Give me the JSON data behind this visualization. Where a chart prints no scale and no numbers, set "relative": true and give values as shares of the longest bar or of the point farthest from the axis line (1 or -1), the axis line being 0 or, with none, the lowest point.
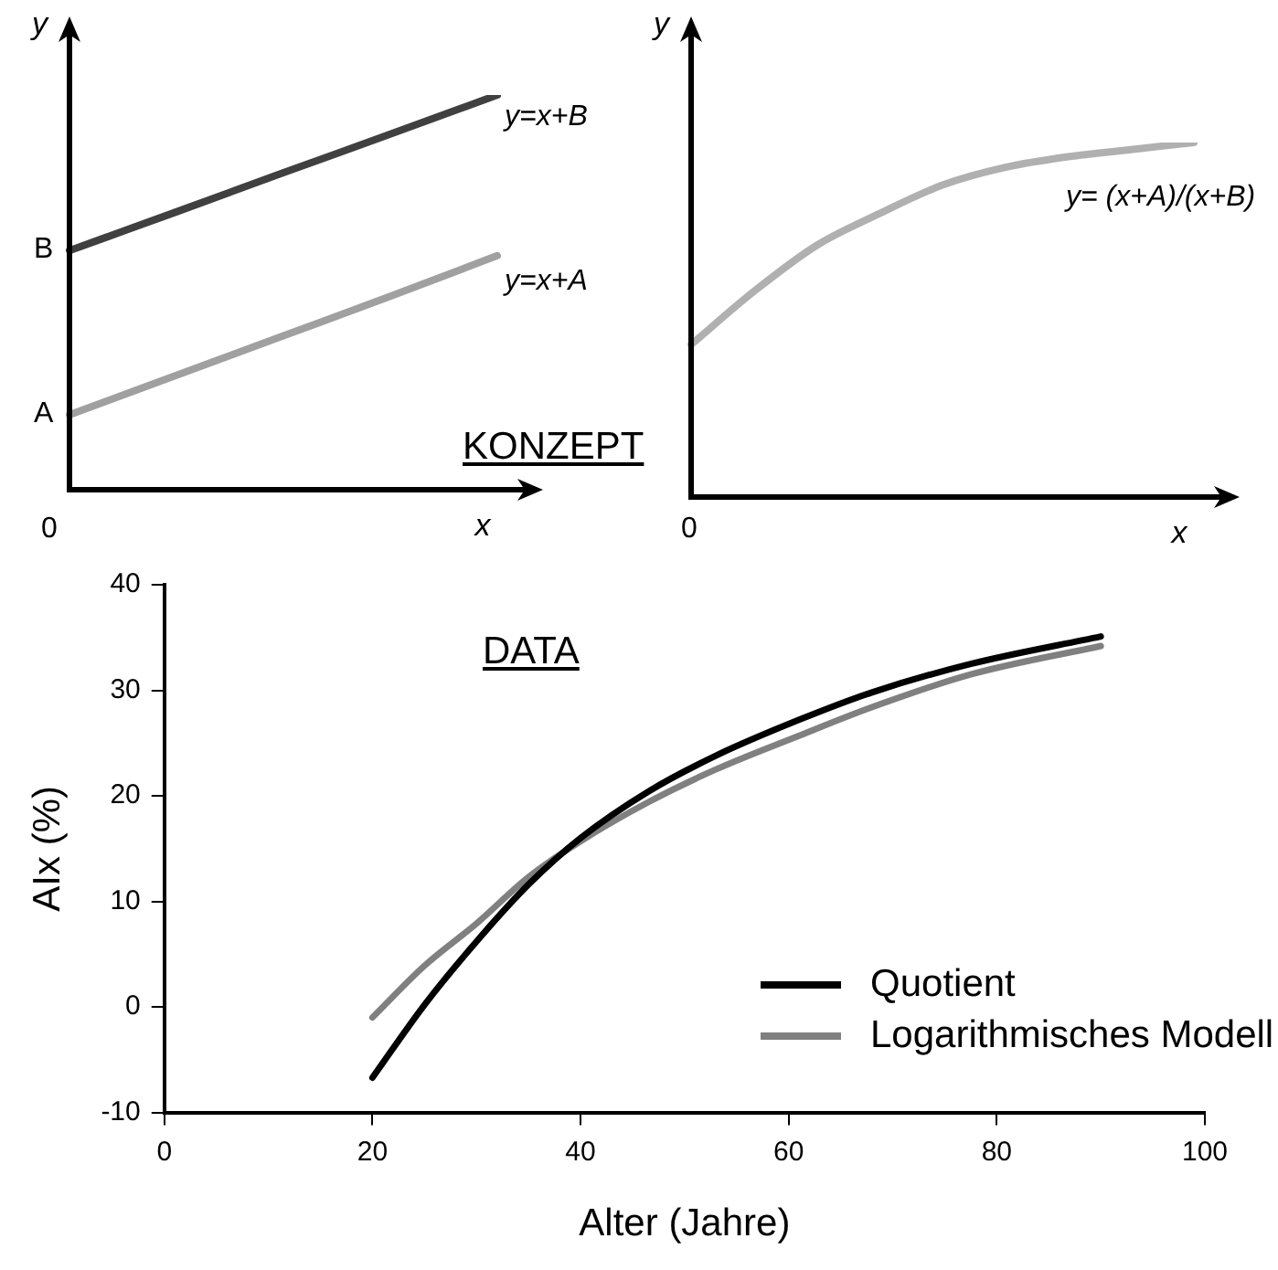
{
  "chart_data": [
    {
      "type": "line",
      "relative": true,
      "xlabel": "x",
      "ylabel": "y",
      "marker": "none",
      "categories": [
        null,
        null,
        null,
        null,
        null
      ],
      "series": [
        {
          "name": "y=x+B",
          "color": "#404040",
          "values": [
            0.606,
            0.704,
            0.803,
            0.901,
            1
          ]
        },
        {
          "name": "y=x+A",
          "color": "#a0a0a0",
          "values": [
            0.19,
            0.29,
            0.39,
            0.49,
            0.593
          ]
        }
      ],
      "annotations": [
        "B",
        "A",
        "0",
        "KONZEPT"
      ]
    },
    {
      "type": "line",
      "relative": true,
      "xlabel": "x",
      "ylabel": "y",
      "marker": "none",
      "categories": [
        null,
        null,
        null,
        null,
        null,
        null,
        null,
        null,
        null
      ],
      "series": [
        {
          "name": "y= (x+A)/(x+B)",
          "color": "#b0b0b0",
          "values": [
            0.43,
            0.58,
            0.71,
            0.8,
            0.88,
            0.93,
            0.96,
            0.98,
            1
          ]
        }
      ],
      "annotations": [
        "0"
      ]
    },
    {
      "type": "line",
      "xlabel": "Alter (Jahre)",
      "ylabel": "AIx (%)",
      "marker": "none",
      "grid": false,
      "legend": "bottom right",
      "xlim": [
        0,
        100
      ],
      "xticks": [
        0,
        20,
        40,
        60,
        80,
        100
      ],
      "ylim": [
        -10,
        40
      ],
      "yticks": [
        -10,
        0,
        10,
        20,
        30,
        40
      ],
      "x": [
        20,
        25,
        30,
        35,
        40,
        46.5,
        53,
        61,
        68,
        77.5,
        90
      ],
      "series": [
        {
          "name": "Quotient",
          "color": "#000000",
          "values": [
            -6.7,
            0.2,
            6.2,
            11.6,
            16.0,
            20.4,
            23.8,
            27.2,
            29.8,
            32.5,
            35.1
          ]
        },
        {
          "name": "Logarithmisches Modell",
          "color": "#808080",
          "values": [
            -1.0,
            3.9,
            7.9,
            12.3,
            15.7,
            19.4,
            22.5,
            25.7,
            28.4,
            31.5,
            34.2
          ]
        }
      ],
      "annotations": [
        "DATA"
      ]
    }
  ]
}
